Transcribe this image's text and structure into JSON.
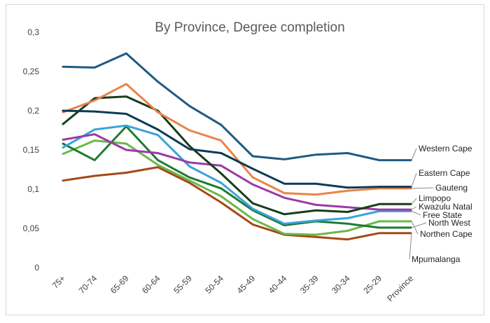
{
  "chart_data": {
    "type": "line",
    "title": "By Province, Degree completion",
    "xlabel": "",
    "ylabel": "",
    "ylim": [
      0,
      0.3
    ],
    "yticks": [
      "0",
      "0,05",
      "0,1",
      "0,15",
      "0,2",
      "0,25",
      "0,3"
    ],
    "categories": [
      "75+",
      "70-74",
      "65-69",
      "60-64",
      "55-59",
      "50-54",
      "45-49",
      "40-44",
      "35-39",
      "30-34",
      "25-29",
      "Province"
    ],
    "grid": false,
    "legend": "right, labels at line ends",
    "series": [
      {
        "name": "Western Cape",
        "color": "#1f5a82",
        "values": [
          0.256,
          0.255,
          0.273,
          0.237,
          0.206,
          0.182,
          0.142,
          0.138,
          0.144,
          0.146,
          0.137,
          0.137
        ]
      },
      {
        "name": "Eastern Cape",
        "color": "#0f3a56",
        "values": [
          0.2,
          0.199,
          0.196,
          0.176,
          0.151,
          0.146,
          0.126,
          0.107,
          0.107,
          0.102,
          0.103,
          0.103
        ]
      },
      {
        "name": "Gauteng",
        "color": "#e8844a",
        "values": [
          0.198,
          0.213,
          0.234,
          0.198,
          0.175,
          0.162,
          0.115,
          0.095,
          0.093,
          0.098,
          0.101,
          0.101
        ]
      },
      {
        "name": "Limpopo",
        "color": "#173d1a",
        "values": [
          0.183,
          0.216,
          0.218,
          0.2,
          0.155,
          0.12,
          0.082,
          0.068,
          0.073,
          0.071,
          0.081,
          0.081
        ]
      },
      {
        "name": "Kwazulu Natal",
        "color": "#9c3aa8",
        "values": [
          0.163,
          0.17,
          0.15,
          0.146,
          0.134,
          0.13,
          0.106,
          0.089,
          0.08,
          0.077,
          0.074,
          0.074
        ]
      },
      {
        "name": "Free State",
        "color": "#3aa3d8",
        "values": [
          0.153,
          0.176,
          0.181,
          0.169,
          0.129,
          0.108,
          0.075,
          0.056,
          0.06,
          0.063,
          0.072,
          0.072
        ]
      },
      {
        "name": "North West",
        "color": "#1f7a32",
        "values": [
          0.158,
          0.137,
          0.18,
          0.137,
          0.115,
          0.101,
          0.073,
          0.054,
          0.059,
          0.056,
          0.051,
          0.051
        ]
      },
      {
        "name": "Northen Cape",
        "color": "#6ab84a",
        "values": [
          0.145,
          0.162,
          0.158,
          0.131,
          0.111,
          0.091,
          0.062,
          0.043,
          0.042,
          0.047,
          0.059,
          0.059
        ]
      },
      {
        "name": "Mpumalanga",
        "color": "#a64815",
        "values": [
          0.111,
          0.117,
          0.121,
          0.128,
          0.108,
          0.083,
          0.055,
          0.042,
          0.039,
          0.036,
          0.044,
          0.044
        ]
      }
    ]
  }
}
